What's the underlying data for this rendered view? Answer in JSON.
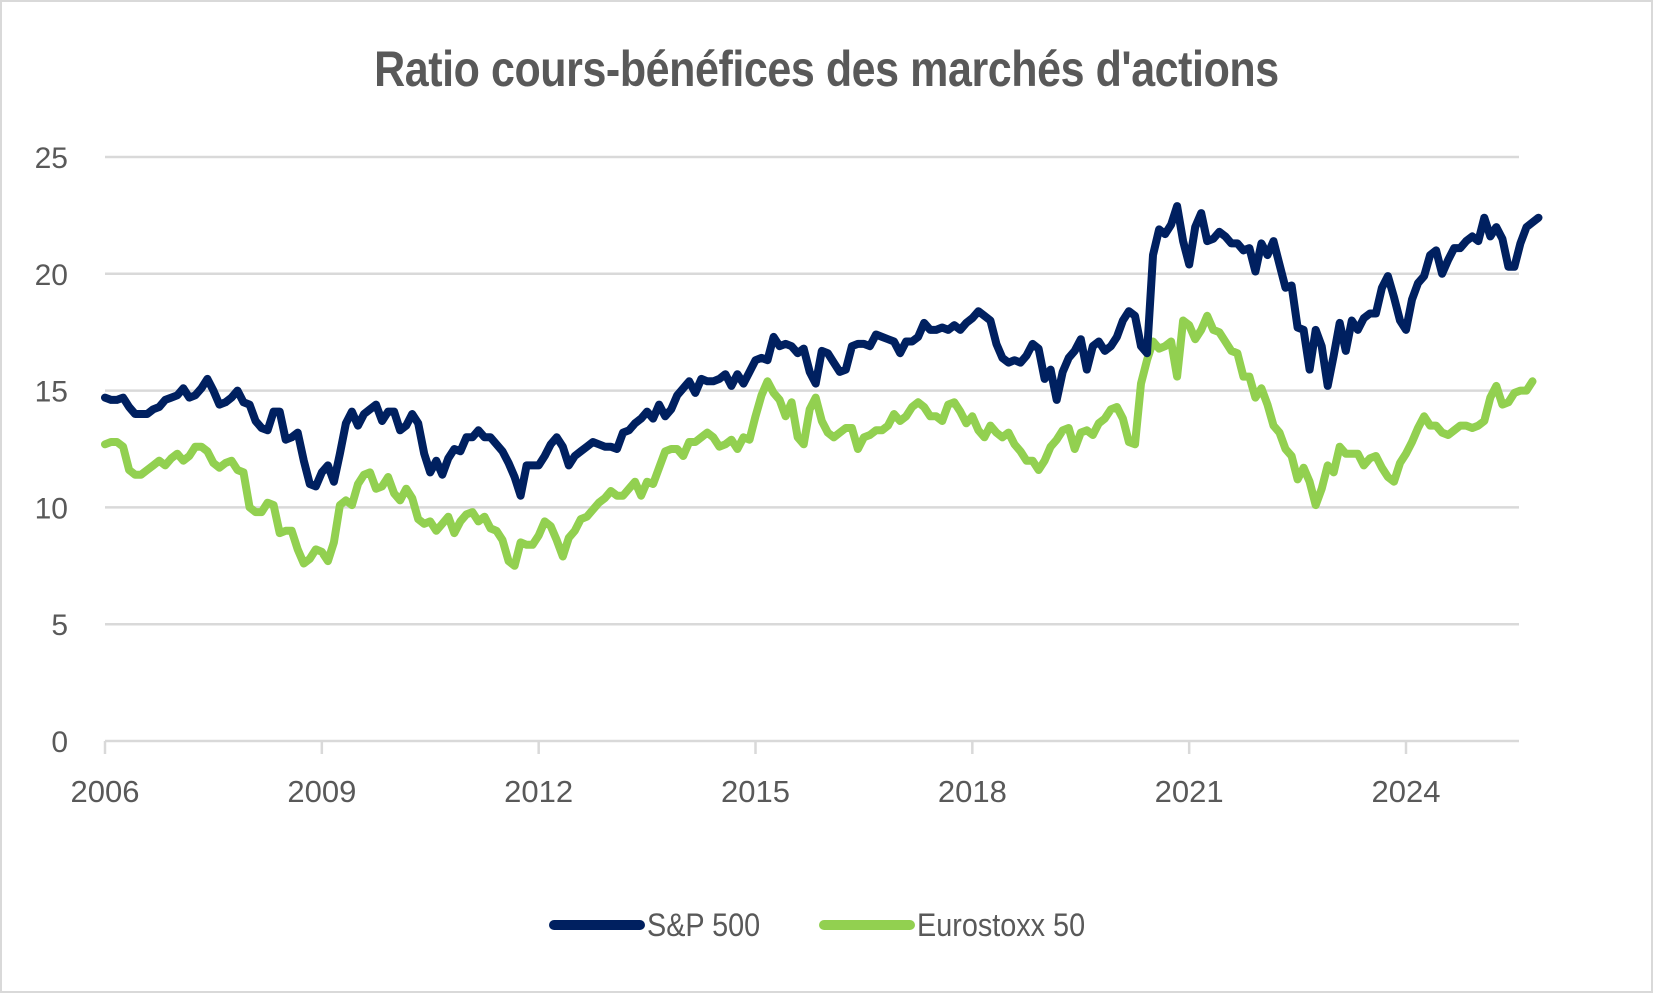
{
  "chart_data": {
    "type": "line",
    "title": "Ratio cours-bénéfices des marchés d'actions",
    "xlabel": "",
    "ylabel": "",
    "ylim": [
      0,
      25
    ],
    "yticks": [
      0,
      5,
      10,
      15,
      20,
      25
    ],
    "ytick_labels": [
      "0",
      "5",
      "10",
      "15",
      "20",
      "25"
    ],
    "xticks": [
      2006,
      2009,
      2012,
      2015,
      2018,
      2021,
      2024
    ],
    "xtick_labels": [
      "2006",
      "2009",
      "2012",
      "2015",
      "2018",
      "2021",
      "2024"
    ],
    "x_start": "2006-01",
    "x_frequency": "monthly",
    "grid": "horizontal",
    "legend_position": "bottom",
    "series": [
      {
        "name": "S&P 500",
        "color": "#002060",
        "values": [
          14.7,
          14.6,
          14.6,
          14.7,
          14.3,
          14.0,
          14.0,
          14.0,
          14.2,
          14.3,
          14.6,
          14.7,
          14.8,
          15.1,
          14.7,
          14.8,
          15.1,
          15.5,
          15.0,
          14.4,
          14.5,
          14.7,
          15.0,
          14.5,
          14.4,
          13.7,
          13.4,
          13.3,
          14.1,
          14.1,
          12.9,
          13.0,
          13.2,
          12.0,
          11.0,
          10.9,
          11.5,
          11.8,
          11.1,
          12.3,
          13.6,
          14.1,
          13.5,
          14.0,
          14.2,
          14.4,
          13.7,
          14.1,
          14.1,
          13.3,
          13.5,
          14.0,
          13.6,
          12.3,
          11.5,
          12.0,
          11.4,
          12.1,
          12.5,
          12.4,
          13.0,
          13.0,
          13.3,
          13.0,
          13.0,
          12.7,
          12.4,
          11.9,
          11.3,
          10.5,
          11.8,
          11.8,
          11.8,
          12.2,
          12.7,
          13.0,
          12.6,
          11.8,
          12.2,
          12.4,
          12.6,
          12.8,
          12.7,
          12.6,
          12.6,
          12.5,
          13.2,
          13.3,
          13.6,
          13.8,
          14.1,
          13.8,
          14.4,
          13.9,
          14.2,
          14.8,
          15.1,
          15.4,
          14.9,
          15.5,
          15.4,
          15.4,
          15.5,
          15.7,
          15.2,
          15.7,
          15.3,
          15.8,
          16.3,
          16.4,
          16.3,
          17.3,
          16.9,
          17.0,
          16.9,
          16.6,
          16.8,
          15.8,
          15.3,
          16.7,
          16.6,
          16.2,
          15.8,
          15.9,
          16.9,
          17.0,
          17.0,
          16.9,
          17.4,
          17.3,
          17.2,
          17.1,
          16.6,
          17.1,
          17.1,
          17.3,
          17.9,
          17.6,
          17.6,
          17.7,
          17.6,
          17.8,
          17.6,
          17.9,
          18.1,
          18.4,
          18.2,
          18.0,
          17.0,
          16.4,
          16.2,
          16.3,
          16.2,
          16.5,
          17.0,
          16.8,
          15.5,
          15.9,
          14.6,
          15.8,
          16.4,
          16.7,
          17.2,
          15.9,
          16.9,
          17.1,
          16.7,
          16.9,
          17.3,
          18.0,
          18.4,
          18.2,
          16.9,
          16.6,
          20.8,
          21.9,
          21.7,
          22.1,
          22.9,
          21.4,
          20.4,
          22.0,
          22.6,
          21.4,
          21.5,
          21.8,
          21.6,
          21.3,
          21.3,
          21.0,
          21.1,
          20.1,
          21.3,
          20.8,
          21.4,
          20.4,
          19.4,
          19.5,
          17.7,
          17.6,
          15.9,
          17.6,
          16.9,
          15.2,
          16.5,
          17.9,
          16.7,
          18.0,
          17.6,
          18.1,
          18.3,
          18.3,
          19.4,
          19.9,
          19.0,
          18.0,
          17.6,
          18.9,
          19.6,
          19.9,
          20.8,
          21.0,
          20.0,
          20.6,
          21.1,
          21.1,
          21.4,
          21.6,
          21.4,
          22.4,
          21.6,
          22.0,
          21.5,
          20.3,
          20.3,
          21.3,
          22.0,
          22.2,
          22.4
        ]
      },
      {
        "name": "Eurostoxx 50",
        "color": "#92D050",
        "values": [
          12.7,
          12.8,
          12.8,
          12.6,
          11.6,
          11.4,
          11.4,
          11.6,
          11.8,
          12.0,
          11.8,
          12.1,
          12.3,
          12.0,
          12.2,
          12.6,
          12.6,
          12.4,
          11.9,
          11.7,
          11.9,
          12.0,
          11.6,
          11.5,
          10.0,
          9.8,
          9.8,
          10.2,
          10.1,
          8.9,
          9.0,
          9.0,
          8.2,
          7.6,
          7.8,
          8.2,
          8.1,
          7.7,
          8.5,
          10.1,
          10.3,
          10.1,
          11.0,
          11.4,
          11.5,
          10.8,
          10.9,
          11.3,
          10.6,
          10.3,
          10.8,
          10.4,
          9.5,
          9.3,
          9.4,
          9.0,
          9.3,
          9.6,
          8.9,
          9.4,
          9.7,
          9.8,
          9.4,
          9.6,
          9.1,
          9.0,
          8.6,
          7.7,
          7.5,
          8.5,
          8.4,
          8.4,
          8.8,
          9.4,
          9.2,
          8.6,
          7.9,
          8.7,
          9.0,
          9.5,
          9.6,
          9.9,
          10.2,
          10.4,
          10.7,
          10.5,
          10.5,
          10.8,
          11.1,
          10.5,
          11.1,
          11.0,
          11.7,
          12.4,
          12.5,
          12.5,
          12.2,
          12.8,
          12.8,
          13.0,
          13.2,
          13.0,
          12.6,
          12.7,
          12.9,
          12.5,
          13.0,
          12.9,
          13.9,
          14.8,
          15.4,
          14.9,
          14.6,
          13.9,
          14.5,
          13.0,
          12.7,
          14.2,
          14.7,
          13.7,
          13.2,
          13.0,
          13.2,
          13.4,
          13.4,
          12.5,
          13.0,
          13.1,
          13.3,
          13.3,
          13.5,
          14.0,
          13.7,
          13.9,
          14.3,
          14.5,
          14.3,
          13.9,
          13.9,
          13.7,
          14.4,
          14.5,
          14.1,
          13.6,
          13.9,
          13.3,
          13.0,
          13.5,
          13.2,
          13.0,
          13.2,
          12.7,
          12.4,
          12.0,
          12.0,
          11.6,
          12.0,
          12.6,
          12.9,
          13.3,
          13.4,
          12.5,
          13.2,
          13.3,
          13.1,
          13.6,
          13.8,
          14.2,
          14.3,
          13.8,
          12.8,
          12.7,
          15.3,
          16.3,
          17.1,
          16.8,
          16.9,
          17.1,
          15.6,
          18.0,
          17.8,
          17.2,
          17.6,
          18.2,
          17.6,
          17.5,
          17.1,
          16.7,
          16.6,
          15.6,
          15.6,
          14.7,
          15.1,
          14.4,
          13.5,
          13.2,
          12.5,
          12.2,
          11.2,
          11.7,
          11.1,
          10.1,
          10.8,
          11.8,
          11.5,
          12.6,
          12.3,
          12.3,
          12.3,
          11.8,
          12.1,
          12.2,
          11.7,
          11.3,
          11.1,
          11.9,
          12.3,
          12.8,
          13.4,
          13.9,
          13.5,
          13.5,
          13.2,
          13.1,
          13.3,
          13.5,
          13.5,
          13.4,
          13.5,
          13.7,
          14.7,
          15.2,
          14.4,
          14.5,
          14.9,
          15.0,
          15.0,
          15.4
        ]
      }
    ]
  },
  "legend": {
    "items": [
      {
        "label": "S&P 500",
        "color": "#002060"
      },
      {
        "label": "Eurostoxx 50",
        "color": "#92D050"
      }
    ]
  },
  "colors": {
    "gridline": "#d9d9d9",
    "text": "#595959",
    "frame": "#d9d9d9"
  }
}
